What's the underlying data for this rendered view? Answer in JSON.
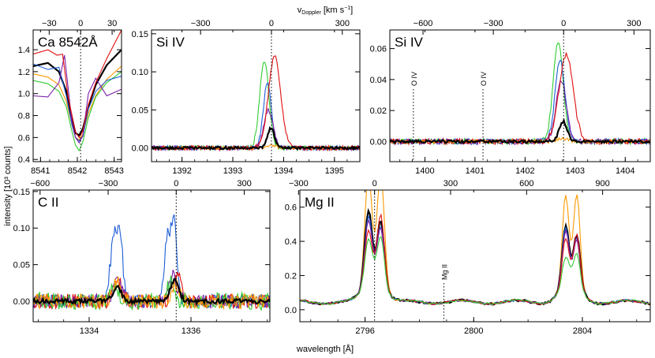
{
  "figure": {
    "x_label": "wavelength [Å]",
    "y_label": "intensity [10³ counts]",
    "top_label": "v",
    "top_label_sub": "Doppler",
    "top_label_unit": " [km s",
    "top_label_sup": "−1",
    "top_label_close": "]"
  },
  "chart_data": [
    {
      "type": "line",
      "title": "Ca 8542Å",
      "xlim": [
        8540.8,
        8543.2
      ],
      "ylim": [
        0.38,
        1.58
      ],
      "xticks": [
        8541,
        8542,
        8543
      ],
      "xtick_labels": [
        "8541",
        "8542",
        "8543"
      ],
      "yticks": [
        0.4,
        0.6,
        0.8,
        1.0,
        1.2,
        1.4
      ],
      "ytick_labels": [
        "0.4",
        "0.6",
        "0.8",
        "1.0",
        "1.2",
        "1.4"
      ],
      "top_ticks": [
        -30,
        0,
        30
      ],
      "top_tick_labels": [
        "−30",
        "0",
        "30"
      ],
      "line_center": 8542.09,
      "km_per_unit": 35.1,
      "series": [
        {
          "color": "#000000",
          "x": [
            8540.8,
            8541.2,
            8541.5,
            8541.7,
            8541.85,
            8541.95,
            8542.05,
            8542.15,
            8542.3,
            8542.5,
            8542.8,
            8543.2
          ],
          "y": [
            1.25,
            1.28,
            1.2,
            1.02,
            0.78,
            0.64,
            0.62,
            0.68,
            0.88,
            1.08,
            1.26,
            1.4
          ]
        },
        {
          "color": "#ff9900",
          "x": [
            8540.8,
            8541.2,
            8541.5,
            8541.7,
            8541.85,
            8541.95,
            8542.05,
            8542.15,
            8542.3,
            8542.5,
            8542.8,
            8543.2
          ],
          "y": [
            1.18,
            1.15,
            1.08,
            0.93,
            0.72,
            0.6,
            0.58,
            0.63,
            0.82,
            0.98,
            1.13,
            1.25
          ]
        },
        {
          "color": "#33cc33",
          "x": [
            8540.8,
            8541.2,
            8541.5,
            8541.7,
            8541.85,
            8541.95,
            8542.05,
            8542.15,
            8542.3,
            8542.5,
            8542.8,
            8543.2
          ],
          "y": [
            1.12,
            1.09,
            1.02,
            0.88,
            0.66,
            0.53,
            0.48,
            0.56,
            0.78,
            0.97,
            1.1,
            1.2
          ]
        },
        {
          "color": "#1f5fd6",
          "x": [
            8540.8,
            8541.2,
            8541.5,
            8541.7,
            8541.85,
            8541.95,
            8542.05,
            8542.15,
            8542.3,
            8542.5,
            8542.8,
            8543.2
          ],
          "y": [
            1.27,
            1.22,
            1.24,
            0.98,
            0.72,
            0.6,
            0.57,
            0.61,
            0.86,
            1.02,
            1.12,
            1.16
          ]
        },
        {
          "color": "#7a1fa8",
          "x": [
            8540.8,
            8541.2,
            8541.5,
            8541.65,
            8541.85,
            8541.95,
            8542.05,
            8542.15,
            8542.3,
            8542.5,
            8542.8,
            8543.2
          ],
          "y": [
            0.98,
            0.97,
            1.1,
            1.35,
            0.75,
            0.6,
            0.55,
            0.62,
            1.0,
            1.14,
            0.98,
            1.04
          ]
        },
        {
          "color": "#e01010",
          "x": [
            8540.8,
            8541.2,
            8541.45,
            8541.6,
            8541.75,
            8541.95,
            8542.05,
            8542.15,
            8542.3,
            8542.5,
            8542.8,
            8543.2
          ],
          "y": [
            1.36,
            1.4,
            1.35,
            1.36,
            0.97,
            0.65,
            0.6,
            0.66,
            0.9,
            1.1,
            1.32,
            1.58
          ]
        }
      ]
    },
    {
      "type": "line",
      "title": "Si IV",
      "xlim": [
        1391.4,
        1395.5
      ],
      "ylim": [
        -0.018,
        0.155
      ],
      "xticks": [
        1392,
        1393,
        1394,
        1395
      ],
      "xtick_labels": [
        "1392",
        "1393",
        "1394",
        "1395"
      ],
      "yticks": [
        0.0,
        0.05,
        0.1,
        0.15
      ],
      "ytick_labels": [
        "0.00",
        "0.05",
        "0.10",
        "0.15"
      ],
      "top_ticks": [
        -300,
        0,
        300
      ],
      "top_tick_labels": [
        "−300",
        "0",
        "300"
      ],
      "line_center": 1393.76,
      "km_per_unit": 215.1,
      "series": [
        {
          "color": "#33cc33",
          "peak_x": 1393.62,
          "peak_y": 0.115,
          "width": 0.09,
          "noise": 0.003
        },
        {
          "color": "#1f5fd6",
          "peak_x": 1393.68,
          "peak_y": 0.085,
          "width": 0.08,
          "noise": 0.003
        },
        {
          "color": "#7a1fa8",
          "peak_x": 1393.7,
          "peak_y": 0.05,
          "width": 0.09,
          "noise": 0.003
        },
        {
          "color": "#e01010",
          "peak_x": 1393.82,
          "peak_y": 0.12,
          "width": 0.12,
          "noise": 0.003
        },
        {
          "color": "#ff9900",
          "peak_x": 1393.76,
          "peak_y": 0.003,
          "width": 0.1,
          "noise": 0.002
        },
        {
          "color": "#000000",
          "peak_x": 1393.75,
          "peak_y": 0.026,
          "width": 0.07,
          "noise": 0.0015
        }
      ]
    },
    {
      "type": "line",
      "title": "Si IV",
      "xlim": [
        1399.3,
        1404.5
      ],
      "ylim": [
        -0.013,
        0.072
      ],
      "xticks": [
        1400,
        1401,
        1402,
        1403,
        1404
      ],
      "xtick_labels": [
        "1400",
        "1401",
        "1402",
        "1403",
        "1404"
      ],
      "yticks": [
        0.0,
        0.02,
        0.04,
        0.06
      ],
      "ytick_labels": [
        "0.00",
        "0.02",
        "0.04",
        "0.06"
      ],
      "top_ticks": [
        -600,
        -300,
        0,
        300
      ],
      "top_tick_labels": [
        "−600",
        "−300",
        "0",
        "300"
      ],
      "line_center": 1402.77,
      "km_per_unit": 213.7,
      "annotations": [
        {
          "text": "O IV",
          "x": 1399.77
        },
        {
          "text": "O IV",
          "x": 1401.16
        }
      ],
      "series": [
        {
          "color": "#33cc33",
          "peak_x": 1402.66,
          "peak_y": 0.064,
          "width": 0.1,
          "noise": 0.0018
        },
        {
          "color": "#1f5fd6",
          "peak_x": 1402.7,
          "peak_y": 0.052,
          "width": 0.1,
          "noise": 0.0018
        },
        {
          "color": "#7a1fa8",
          "peak_x": 1402.72,
          "peak_y": 0.04,
          "width": 0.1,
          "noise": 0.0018
        },
        {
          "color": "#e01010",
          "peak_x": 1402.82,
          "peak_y": 0.056,
          "width": 0.14,
          "noise": 0.0018
        },
        {
          "color": "#ff9900",
          "peak_x": 1402.77,
          "peak_y": 0.002,
          "width": 0.1,
          "noise": 0.0012
        },
        {
          "color": "#000000",
          "peak_x": 1402.76,
          "peak_y": 0.013,
          "width": 0.08,
          "noise": 0.0009
        }
      ]
    },
    {
      "type": "line",
      "title": "C II",
      "xlim": [
        1332.9,
        1337.55
      ],
      "ylim": [
        -0.028,
        0.152
      ],
      "xticks": [
        1334,
        1336
      ],
      "xtick_labels": [
        "1334",
        "1336"
      ],
      "yticks": [
        0.0,
        0.05,
        0.1,
        0.15
      ],
      "ytick_labels": [
        "0.00",
        "0.05",
        "0.10",
        "0.15"
      ],
      "top_ticks": [
        -600,
        -300,
        0,
        300
      ],
      "top_tick_labels": [
        "−600",
        "−300",
        "0",
        "300"
      ],
      "line_center": 1335.71,
      "km_per_unit": 224.4,
      "series": [
        {
          "color": "#1f5fd6",
          "peaks": [
            [
              1334.5,
              0.09,
              0.08
            ],
            [
              1334.62,
              0.06,
              0.05
            ],
            [
              1335.55,
              0.09,
              0.07
            ],
            [
              1335.68,
              0.1,
              0.05
            ]
          ],
          "noise": 0.01
        },
        {
          "color": "#e01010",
          "peaks": [
            [
              1334.55,
              0.03,
              0.08
            ],
            [
              1335.72,
              0.04,
              0.08
            ]
          ],
          "noise": 0.01
        },
        {
          "color": "#7a1fa8",
          "peaks": [
            [
              1334.55,
              0.035,
              0.08
            ],
            [
              1335.65,
              0.035,
              0.08
            ]
          ],
          "noise": 0.01
        },
        {
          "color": "#33cc33",
          "peaks": [
            [
              1334.5,
              0.02,
              0.08
            ],
            [
              1335.6,
              0.025,
              0.08
            ]
          ],
          "noise": 0.012
        },
        {
          "color": "#ff9900",
          "peaks": [
            [
              1334.55,
              0.025,
              0.08
            ],
            [
              1335.7,
              0.02,
              0.08
            ]
          ],
          "noise": 0.01
        },
        {
          "color": "#000000",
          "peaks": [
            [
              1334.55,
              0.02,
              0.08
            ],
            [
              1335.68,
              0.03,
              0.08
            ]
          ],
          "noise": 0.003
        }
      ]
    },
    {
      "type": "line",
      "title": "Mg II",
      "xlim": [
        2793.6,
        2806.5
      ],
      "ylim": [
        -0.07,
        0.7
      ],
      "xticks": [
        2796,
        2800,
        2804
      ],
      "xtick_labels": [
        "2796",
        "2800",
        "2804"
      ],
      "yticks": [
        0.0,
        0.2,
        0.4,
        0.6
      ],
      "ytick_labels": [
        "0.0",
        "0.2",
        "0.4",
        "0.6"
      ],
      "top_ticks": [
        -300,
        0,
        300,
        600,
        900
      ],
      "top_tick_labels": [
        "−300",
        "0",
        "300",
        "600",
        "900"
      ],
      "line_center": 2796.35,
      "km_per_unit": 107.2,
      "annotations": [
        {
          "text": "Mg II",
          "x": 2798.9
        }
      ],
      "series": [
        {
          "color": "#ff9900",
          "k": [
            0.63,
            0.65
          ],
          "h": [
            0.51,
            0.53
          ]
        },
        {
          "color": "#000000",
          "k": [
            0.42,
            0.36
          ],
          "h": [
            0.33,
            0.29
          ]
        },
        {
          "color": "#1f5fd6",
          "k": [
            0.38,
            0.33
          ],
          "h": [
            0.32,
            0.28
          ]
        },
        {
          "color": "#7a1fa8",
          "k": [
            0.36,
            0.32
          ],
          "h": [
            0.3,
            0.26
          ]
        },
        {
          "color": "#e01010",
          "k": [
            0.3,
            0.4
          ],
          "h": [
            0.26,
            0.29
          ]
        },
        {
          "color": "#33cc33",
          "k": [
            0.25,
            0.27
          ],
          "h": [
            0.15,
            0.18
          ]
        }
      ]
    }
  ]
}
